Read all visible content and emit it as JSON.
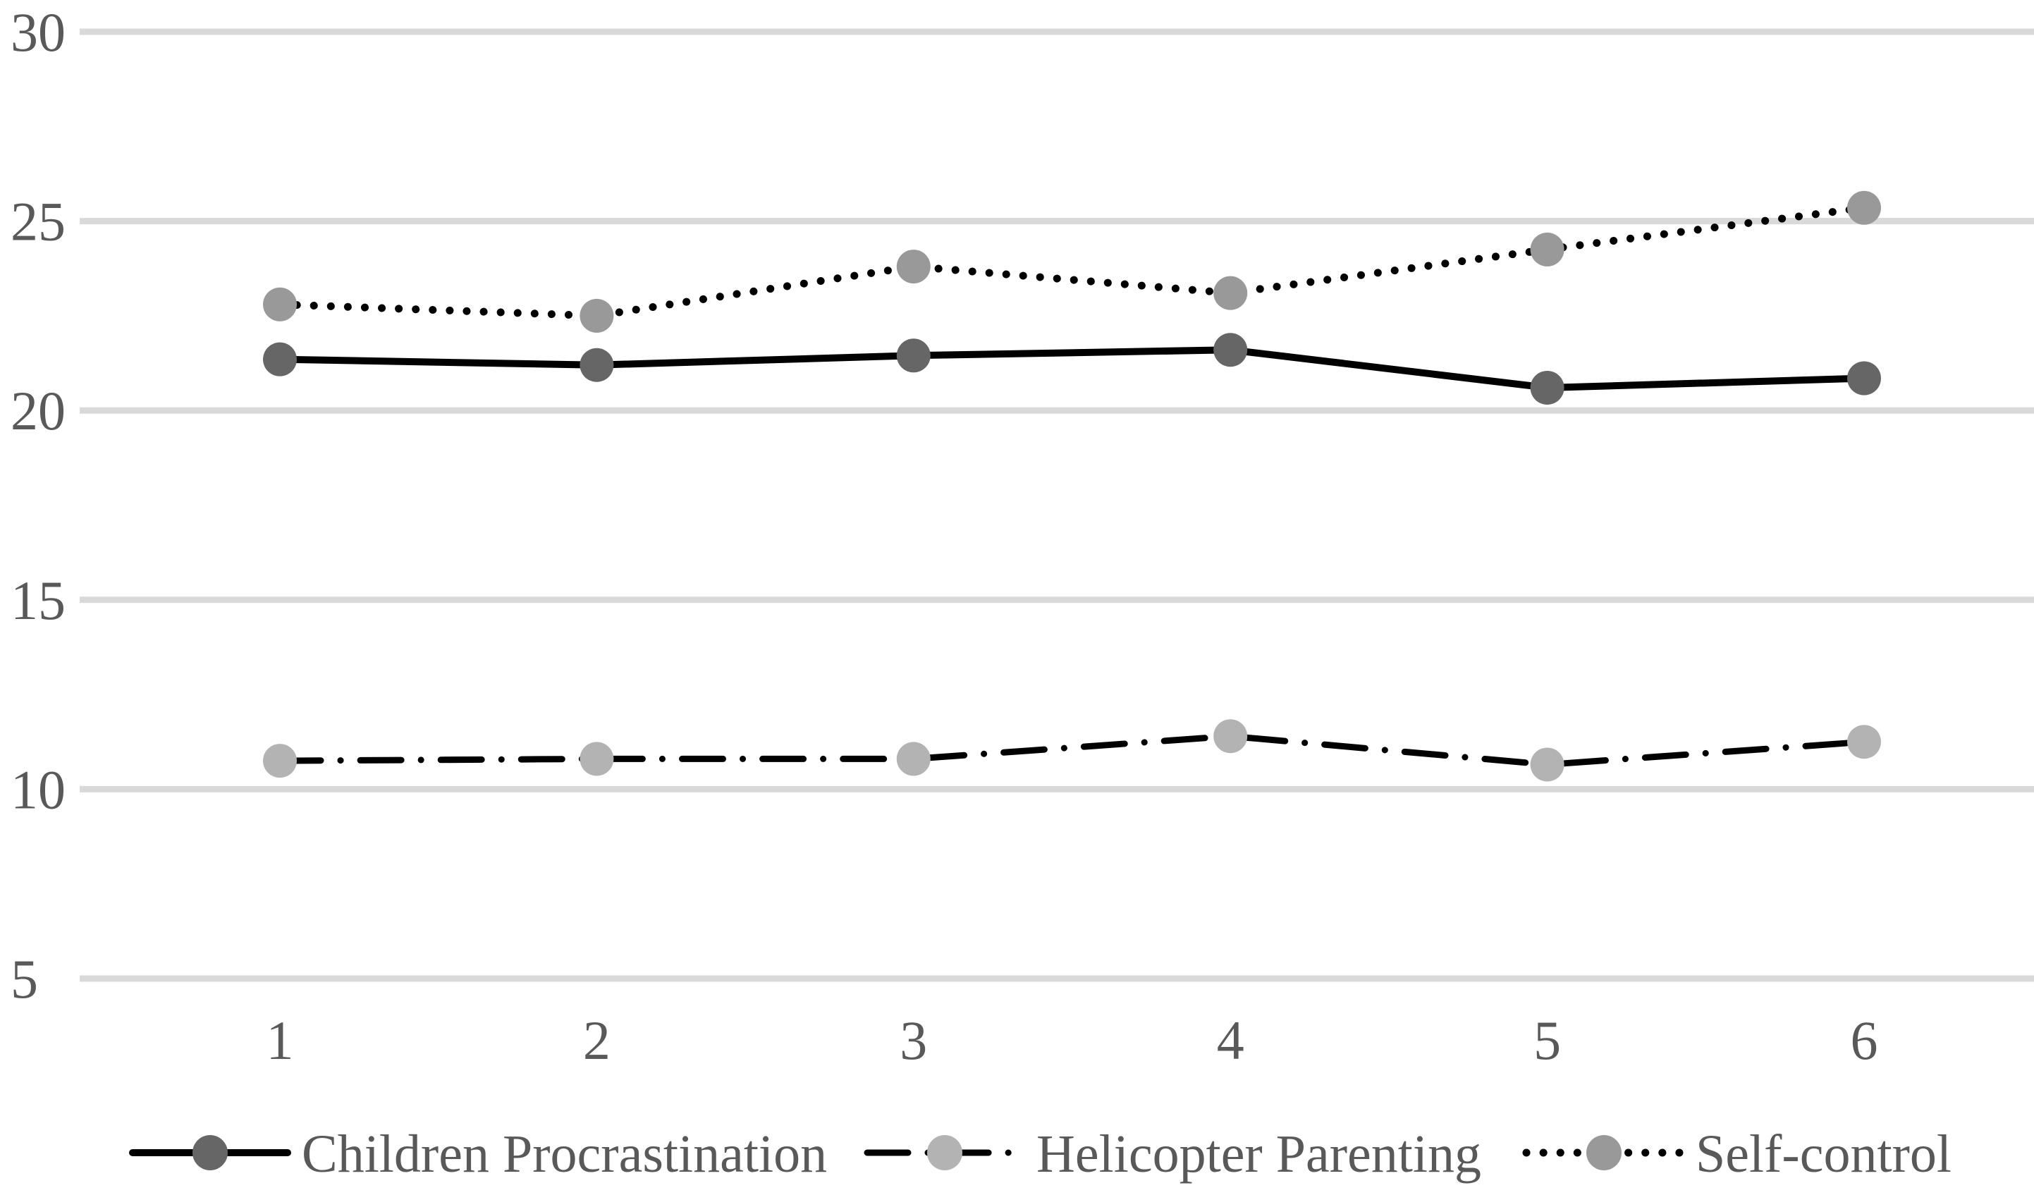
{
  "chart_data": {
    "type": "line",
    "x": [
      1,
      2,
      3,
      4,
      5,
      6
    ],
    "xticklabels": [
      "1",
      "2",
      "3",
      "4",
      "5",
      "6"
    ],
    "yticks": [
      30,
      25,
      20,
      15,
      10,
      5
    ],
    "ylim": [
      5,
      30
    ],
    "grid": "horizontal",
    "title": "",
    "xlabel": "",
    "ylabel": "",
    "legend_position": "bottom",
    "series": [
      {
        "name": "Children Procrastination",
        "values": [
          21.35,
          21.2,
          21.45,
          21.6,
          20.6,
          20.85
        ],
        "line_style": "solid",
        "line_color": "#000000",
        "marker_shape": "circle",
        "marker_color": "#666666"
      },
      {
        "name": "Helicopter Parenting",
        "values": [
          10.75,
          10.8,
          10.8,
          11.4,
          10.65,
          11.25
        ],
        "line_style": "dash-dot",
        "line_color": "#000000",
        "marker_shape": "circle",
        "marker_color": "#b3b3b3"
      },
      {
        "name": "Self-control",
        "values": [
          22.8,
          22.5,
          23.8,
          23.1,
          24.25,
          25.35
        ],
        "line_style": "dotted",
        "line_color": "#000000",
        "marker_shape": "circle",
        "marker_color": "#999999"
      }
    ],
    "colors": {
      "axis_label_text": "#595959",
      "gridline": "#d9d9d9",
      "background": "#ffffff",
      "legend_text": "#595959"
    }
  }
}
